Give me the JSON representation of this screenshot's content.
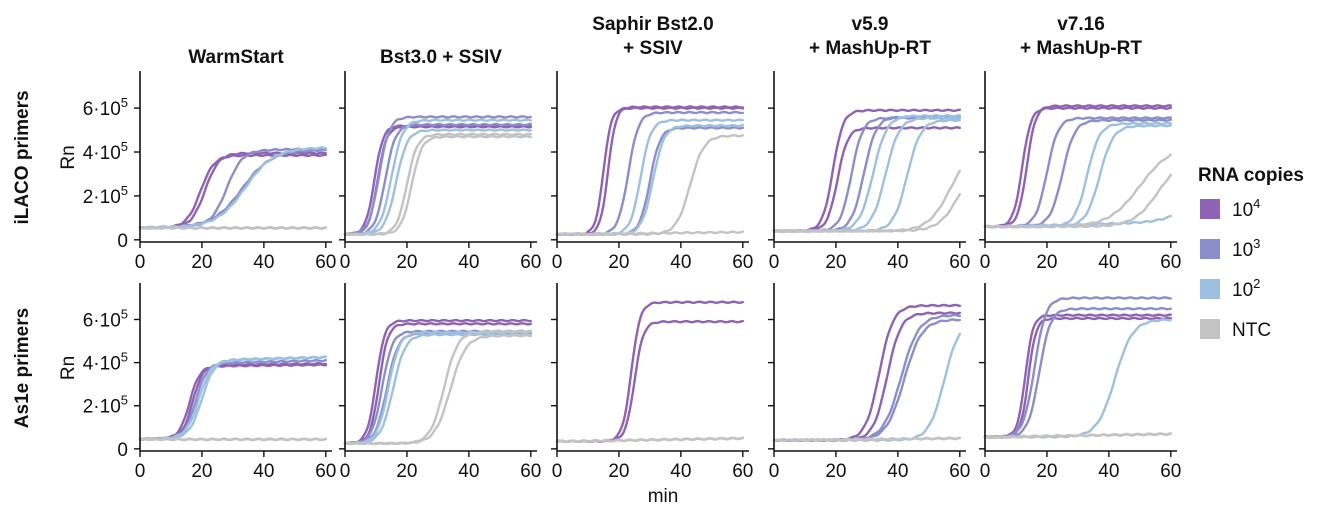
{
  "chart_data": {
    "type": "line",
    "columns": [
      "WarmStart",
      "Bst3.0 + SSIV",
      "Saphir Bst2.0\n+ SSIV",
      "v5.9\n+ MashUp-RT",
      "v7.16\n+ MashUp-RT"
    ],
    "rows": [
      "iLACO primers",
      "As1e primers"
    ],
    "xlabel": "min",
    "ylabel": "Rn",
    "xlim": [
      0,
      62
    ],
    "ylim": [
      -10000,
      760000
    ],
    "xticks": [
      0,
      20,
      40,
      60
    ],
    "yticks": [
      {
        "value": 0,
        "base": "0",
        "exp": ""
      },
      {
        "value": 200000,
        "base": "2·10",
        "exp": "5"
      },
      {
        "value": 400000,
        "base": "4·10",
        "exp": "5"
      },
      {
        "value": 600000,
        "base": "6·10",
        "exp": "5"
      }
    ],
    "legend": {
      "title": "RNA copies",
      "position": "right",
      "entries": [
        {
          "key": "1e4",
          "base": "10",
          "exp": "4",
          "color": "#8E63B4"
        },
        {
          "key": "1e3",
          "base": "10",
          "exp": "3",
          "color": "#8A8FCB"
        },
        {
          "key": "1e2",
          "base": "10",
          "exp": "2",
          "color": "#9EC0E0"
        },
        {
          "key": "NTC",
          "base": "NTC",
          "exp": "",
          "color": "#C3C3C3"
        }
      ]
    },
    "panels": [
      {
        "row": 0,
        "col": 0,
        "curves": [
          {
            "group": "1e4",
            "start": 55000,
            "end": 385000,
            "mid": 19.5,
            "k": 0.45,
            "drift": 0
          },
          {
            "group": "1e4",
            "start": 55000,
            "end": 395000,
            "mid": 21,
            "k": 0.45,
            "drift": 0
          },
          {
            "group": "1e3",
            "start": 55000,
            "end": 400000,
            "mid": 28,
            "k": 0.4,
            "drift": 15000
          },
          {
            "group": "1e3",
            "start": 55000,
            "end": 395000,
            "mid": 33,
            "k": 0.22,
            "drift": 15000
          },
          {
            "group": "1e2",
            "start": 55000,
            "end": 410000,
            "mid": 34,
            "k": 0.22,
            "drift": 10000
          },
          {
            "group": "NTC",
            "start": 55000,
            "end": 55000,
            "mid": 100,
            "k": 0.2,
            "drift": 0
          },
          {
            "group": "NTC",
            "start": 53000,
            "end": 53000,
            "mid": 100,
            "k": 0.2,
            "drift": 0
          }
        ]
      },
      {
        "row": 0,
        "col": 1,
        "curves": [
          {
            "group": "1e4",
            "start": 25000,
            "end": 520000,
            "mid": 9.5,
            "k": 0.7,
            "drift": 0
          },
          {
            "group": "1e4",
            "start": 25000,
            "end": 515000,
            "mid": 10.5,
            "k": 0.7,
            "drift": 0
          },
          {
            "group": "1e3",
            "start": 25000,
            "end": 560000,
            "mid": 11,
            "k": 0.6,
            "drift": 0
          },
          {
            "group": "1e3",
            "start": 25000,
            "end": 525000,
            "mid": 13,
            "k": 0.6,
            "drift": 0
          },
          {
            "group": "1e2",
            "start": 25000,
            "end": 545000,
            "mid": 15,
            "k": 0.55,
            "drift": 0
          },
          {
            "group": "1e2",
            "start": 25000,
            "end": 500000,
            "mid": 16.5,
            "k": 0.55,
            "drift": 0
          },
          {
            "group": "NTC",
            "start": 25000,
            "end": 480000,
            "mid": 20,
            "k": 0.6,
            "drift": 0
          },
          {
            "group": "NTC",
            "start": 25000,
            "end": 470000,
            "mid": 21.5,
            "k": 0.6,
            "drift": 0
          }
        ]
      },
      {
        "row": 0,
        "col": 2,
        "curves": [
          {
            "group": "1e4",
            "start": 25000,
            "end": 600000,
            "mid": 15,
            "k": 0.8,
            "drift": 0
          },
          {
            "group": "1e4",
            "start": 25000,
            "end": 605000,
            "mid": 16.5,
            "k": 0.8,
            "drift": 0
          },
          {
            "group": "1e3",
            "start": 25000,
            "end": 580000,
            "mid": 23,
            "k": 0.6,
            "drift": 0
          },
          {
            "group": "1e3",
            "start": 25000,
            "end": 510000,
            "mid": 30,
            "k": 0.6,
            "drift": 0
          },
          {
            "group": "1e2",
            "start": 25000,
            "end": 545000,
            "mid": 27,
            "k": 0.6,
            "drift": 0
          },
          {
            "group": "1e2",
            "start": 25000,
            "end": 520000,
            "mid": 31,
            "k": 0.55,
            "drift": 0
          },
          {
            "group": "NTC",
            "start": 25000,
            "end": 475000,
            "mid": 43,
            "k": 0.45,
            "drift": 0
          },
          {
            "group": "NTC",
            "start": 25000,
            "end": 35000,
            "mid": 100,
            "k": 0.2,
            "drift": 10000
          }
        ]
      },
      {
        "row": 0,
        "col": 3,
        "curves": [
          {
            "group": "1e4",
            "start": 40000,
            "end": 590000,
            "mid": 19,
            "k": 0.6,
            "drift": 0
          },
          {
            "group": "1e4",
            "start": 40000,
            "end": 510000,
            "mid": 20.5,
            "k": 0.6,
            "drift": 0
          },
          {
            "group": "1e3",
            "start": 40000,
            "end": 555000,
            "mid": 25,
            "k": 0.55,
            "drift": 0
          },
          {
            "group": "1e3",
            "start": 40000,
            "end": 560000,
            "mid": 29,
            "k": 0.5,
            "drift": 0
          },
          {
            "group": "1e2",
            "start": 40000,
            "end": 565000,
            "mid": 32,
            "k": 0.45,
            "drift": 0
          },
          {
            "group": "1e2",
            "start": 40000,
            "end": 555000,
            "mid": 36,
            "k": 0.45,
            "drift": 0
          },
          {
            "group": "1e2",
            "start": 40000,
            "end": 545000,
            "mid": 43,
            "k": 0.45,
            "drift": 0
          },
          {
            "group": "NTC",
            "start": 40000,
            "end": 430000,
            "mid": 57,
            "k": 0.28,
            "drift": 0
          },
          {
            "group": "NTC",
            "start": 40000,
            "end": 380000,
            "mid": 60,
            "k": 0.3,
            "drift": 0
          }
        ]
      },
      {
        "row": 0,
        "col": 4,
        "curves": [
          {
            "group": "1e4",
            "start": 60000,
            "end": 600000,
            "mid": 12,
            "k": 0.7,
            "drift": 0
          },
          {
            "group": "1e4",
            "start": 60000,
            "end": 610000,
            "mid": 13.5,
            "k": 0.7,
            "drift": 0
          },
          {
            "group": "1e3",
            "start": 60000,
            "end": 555000,
            "mid": 20,
            "k": 0.55,
            "drift": 0
          },
          {
            "group": "1e3",
            "start": 60000,
            "end": 545000,
            "mid": 25,
            "k": 0.5,
            "drift": 0
          },
          {
            "group": "1e2",
            "start": 60000,
            "end": 530000,
            "mid": 33,
            "k": 0.5,
            "drift": 0
          },
          {
            "group": "1e2",
            "start": 60000,
            "end": 520000,
            "mid": 37,
            "k": 0.45,
            "drift": 0
          },
          {
            "group": "1e2",
            "start": 60000,
            "end": 160000,
            "mid": 64,
            "k": 0.25,
            "drift": 20000
          },
          {
            "group": "NTC",
            "start": 60000,
            "end": 430000,
            "mid": 50,
            "k": 0.2,
            "drift": 0
          },
          {
            "group": "NTC",
            "start": 60000,
            "end": 380000,
            "mid": 56,
            "k": 0.25,
            "drift": 0
          }
        ]
      },
      {
        "row": 1,
        "col": 0,
        "curves": [
          {
            "group": "1e4",
            "start": 45000,
            "end": 380000,
            "mid": 16,
            "k": 0.6,
            "drift": 10000
          },
          {
            "group": "1e4",
            "start": 45000,
            "end": 385000,
            "mid": 17,
            "k": 0.6,
            "drift": 10000
          },
          {
            "group": "1e3",
            "start": 45000,
            "end": 390000,
            "mid": 18,
            "k": 0.55,
            "drift": 20000
          },
          {
            "group": "1e2",
            "start": 45000,
            "end": 400000,
            "mid": 19,
            "k": 0.5,
            "drift": 25000
          },
          {
            "group": "1e2",
            "start": 45000,
            "end": 405000,
            "mid": 20,
            "k": 0.5,
            "drift": 20000
          },
          {
            "group": "NTC",
            "start": 45000,
            "end": 45000,
            "mid": 100,
            "k": 0.2,
            "drift": 0
          },
          {
            "group": "NTC",
            "start": 43000,
            "end": 43000,
            "mid": 100,
            "k": 0.2,
            "drift": 0
          }
        ]
      },
      {
        "row": 1,
        "col": 1,
        "curves": [
          {
            "group": "1e4",
            "start": 25000,
            "end": 595000,
            "mid": 10,
            "k": 0.7,
            "drift": 0
          },
          {
            "group": "1e4",
            "start": 25000,
            "end": 580000,
            "mid": 11,
            "k": 0.7,
            "drift": 0
          },
          {
            "group": "1e3",
            "start": 25000,
            "end": 545000,
            "mid": 12,
            "k": 0.6,
            "drift": 0
          },
          {
            "group": "1e3",
            "start": 25000,
            "end": 535000,
            "mid": 13.5,
            "k": 0.55,
            "drift": 0
          },
          {
            "group": "1e2",
            "start": 25000,
            "end": 540000,
            "mid": 14,
            "k": 0.55,
            "drift": 0
          },
          {
            "group": "1e2",
            "start": 25000,
            "end": 530000,
            "mid": 15.5,
            "k": 0.5,
            "drift": 0
          },
          {
            "group": "NTC",
            "start": 25000,
            "end": 545000,
            "mid": 32,
            "k": 0.45,
            "drift": 0
          },
          {
            "group": "NTC",
            "start": 25000,
            "end": 525000,
            "mid": 34,
            "k": 0.4,
            "drift": 0
          }
        ]
      },
      {
        "row": 1,
        "col": 2,
        "curves": [
          {
            "group": "1e4",
            "start": 35000,
            "end": 680000,
            "mid": 24,
            "k": 0.7,
            "drift": 0
          },
          {
            "group": "1e4",
            "start": 35000,
            "end": 590000,
            "mid": 25,
            "k": 0.7,
            "drift": 0
          },
          {
            "group": "NTC",
            "start": 35000,
            "end": 50000,
            "mid": 100,
            "k": 0.2,
            "drift": 15000
          },
          {
            "group": "NTC",
            "start": 33000,
            "end": 45000,
            "mid": 100,
            "k": 0.2,
            "drift": 15000
          }
        ]
      },
      {
        "row": 1,
        "col": 3,
        "curves": [
          {
            "group": "1e4",
            "start": 40000,
            "end": 665000,
            "mid": 34,
            "k": 0.45,
            "drift": 0
          },
          {
            "group": "1e4",
            "start": 40000,
            "end": 630000,
            "mid": 36.5,
            "k": 0.45,
            "drift": 0
          },
          {
            "group": "1e3",
            "start": 40000,
            "end": 620000,
            "mid": 41,
            "k": 0.35,
            "drift": 0
          },
          {
            "group": "1e3",
            "start": 40000,
            "end": 600000,
            "mid": 42,
            "k": 0.35,
            "drift": 0
          },
          {
            "group": "1e2",
            "start": 40000,
            "end": 600000,
            "mid": 55,
            "k": 0.4,
            "drift": 0
          },
          {
            "group": "NTC",
            "start": 40000,
            "end": 50000,
            "mid": 100,
            "k": 0.2,
            "drift": 10000
          },
          {
            "group": "NTC",
            "start": 38000,
            "end": 46000,
            "mid": 100,
            "k": 0.2,
            "drift": 10000
          }
        ]
      },
      {
        "row": 1,
        "col": 4,
        "curves": [
          {
            "group": "1e4",
            "start": 55000,
            "end": 620000,
            "mid": 13,
            "k": 0.8,
            "drift": 0
          },
          {
            "group": "1e4",
            "start": 55000,
            "end": 605000,
            "mid": 14,
            "k": 0.8,
            "drift": 0
          },
          {
            "group": "1e3",
            "start": 55000,
            "end": 700000,
            "mid": 16,
            "k": 0.55,
            "drift": 0
          },
          {
            "group": "1e3",
            "start": 55000,
            "end": 650000,
            "mid": 17.5,
            "k": 0.55,
            "drift": 0
          },
          {
            "group": "1e2",
            "start": 55000,
            "end": 600000,
            "mid": 42,
            "k": 0.35,
            "drift": 0
          },
          {
            "group": "NTC",
            "start": 55000,
            "end": 70000,
            "mid": 100,
            "k": 0.2,
            "drift": 15000
          },
          {
            "group": "NTC",
            "start": 53000,
            "end": 68000,
            "mid": 100,
            "k": 0.2,
            "drift": 15000
          }
        ]
      }
    ]
  }
}
